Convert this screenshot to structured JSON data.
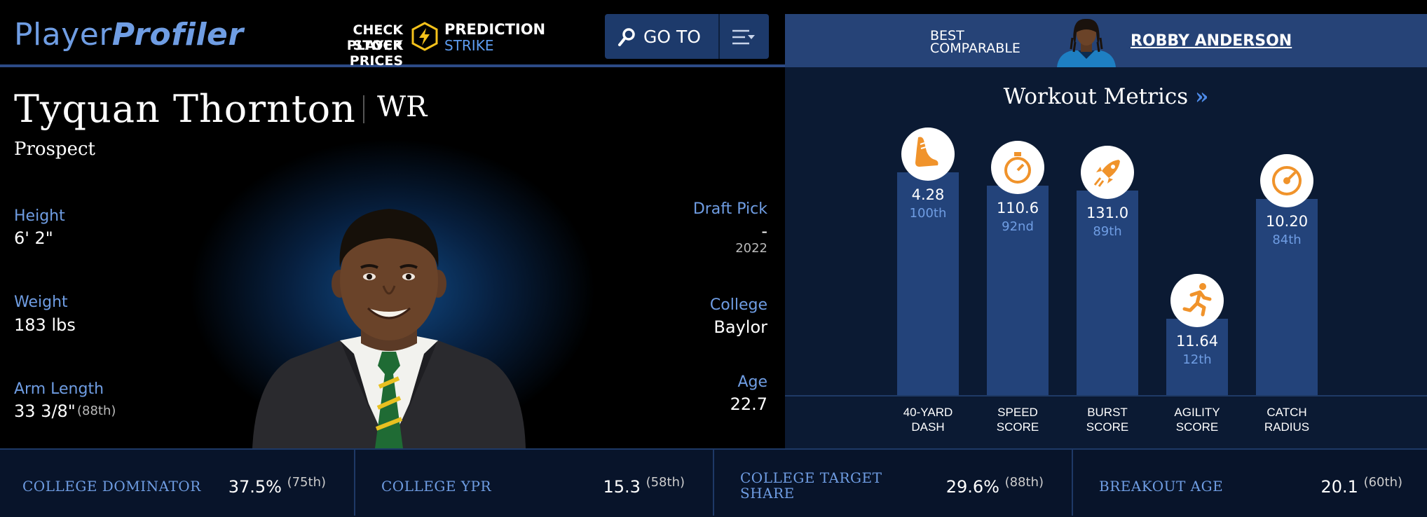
{
  "header": {
    "logo_part1": "Player",
    "logo_part2": "Profiler",
    "promo_line1": "CHECK PLAYER",
    "promo_line2": "STOCK PRICES",
    "promo_brand1": "PREDICTION",
    "promo_brand2": "STRIKE",
    "goto_label": "GO TO"
  },
  "comparable": {
    "label_line1": "BEST",
    "label_line2": "COMPARABLE",
    "name": "ROBBY ANDERSON"
  },
  "player": {
    "name": "Tyquan Thornton",
    "position": "WR",
    "status": "Prospect",
    "height_label": "Height",
    "height": "6' 2\"",
    "weight_label": "Weight",
    "weight": "183 lbs",
    "arm_label": "Arm Length",
    "arm": "33 3/8\"",
    "arm_pct": "(88th)",
    "draft_label": "Draft Pick",
    "draft_pick": "-",
    "draft_year": "2022",
    "college_label": "College",
    "college": "Baylor",
    "age_label": "Age",
    "age": "22.7"
  },
  "workout": {
    "title": "Workout Metrics",
    "chevron": "»",
    "metrics": [
      {
        "line1": "40-YARD",
        "line2": "DASH",
        "value": "4.28",
        "rank": "100th",
        "percentile": 100,
        "icon": "shoe-icon"
      },
      {
        "line1": "SPEED",
        "line2": "SCORE",
        "value": "110.6",
        "rank": "92nd",
        "percentile": 92,
        "icon": "stopwatch-icon"
      },
      {
        "line1": "BURST",
        "line2": "SCORE",
        "value": "131.0",
        "rank": "89th",
        "percentile": 89,
        "icon": "rocket-icon"
      },
      {
        "line1": "AGILITY",
        "line2": "SCORE",
        "value": "11.64",
        "rank": "12th",
        "percentile": 12,
        "icon": "runner-icon"
      },
      {
        "line1": "CATCH",
        "line2": "RADIUS",
        "value": "10.20",
        "rank": "84th",
        "percentile": 84,
        "icon": "target-icon"
      }
    ]
  },
  "stats": [
    {
      "label": "COLLEGE DOMINATOR",
      "value": "37.5%",
      "pct": "(75th)"
    },
    {
      "label": "COLLEGE YPR",
      "value": "15.3",
      "pct": "(58th)"
    },
    {
      "label_line1": "COLLEGE TARGET",
      "label_line2": "SHARE",
      "value": "29.6%",
      "pct": "(88th)"
    },
    {
      "label": "BREAKOUT AGE",
      "value": "20.1",
      "pct": "(60th)"
    }
  ],
  "colors": {
    "accent": "#6f9de3",
    "bar": "#23437a",
    "icon": "#f0932b"
  }
}
